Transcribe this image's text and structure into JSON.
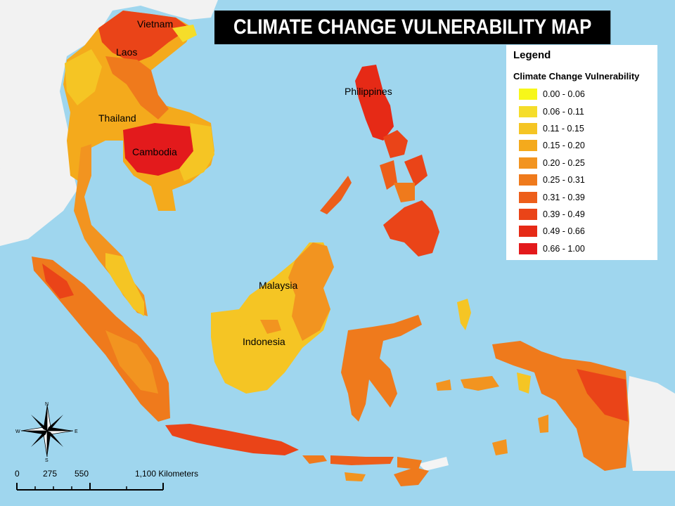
{
  "title": "CLIMATE CHANGE VULNERABILITY MAP",
  "legend": {
    "title": "Legend",
    "subtitle": "Climate Change Vulnerability",
    "classes": [
      {
        "label": "0.00 - 0.06",
        "color": "#f7f71a"
      },
      {
        "label": "0.06 - 0.11",
        "color": "#f5dd2a"
      },
      {
        "label": "0.11 - 0.15",
        "color": "#f5c524"
      },
      {
        "label": "0.15 - 0.20",
        "color": "#f4aa1c"
      },
      {
        "label": "0.20 - 0.25",
        "color": "#f29420"
      },
      {
        "label": "0.25 - 0.31",
        "color": "#ef7a1c"
      },
      {
        "label": "0.31 - 0.39",
        "color": "#ed5e1a"
      },
      {
        "label": "0.39 - 0.49",
        "color": "#ea4418"
      },
      {
        "label": "0.49 - 0.66",
        "color": "#e62a16"
      },
      {
        "label": "0.66 - 1.00",
        "color": "#e31a1c"
      }
    ]
  },
  "labels": {
    "vietnam": "Vietnam",
    "laos": "Laos",
    "thailand": "Thailand",
    "cambodia": "Cambodia",
    "philippines": "Philippines",
    "malaysia": "Malaysia",
    "indonesia": "Indonesia"
  },
  "scale_bar": {
    "ticks": [
      "0",
      "275",
      "550",
      "1,100 Kilometers"
    ]
  },
  "compass": {
    "n": "N",
    "s": "S",
    "e": "E",
    "w": "W"
  },
  "colors": {
    "sea": "#9fd6ee",
    "land_outside": "#f2f2f2"
  }
}
